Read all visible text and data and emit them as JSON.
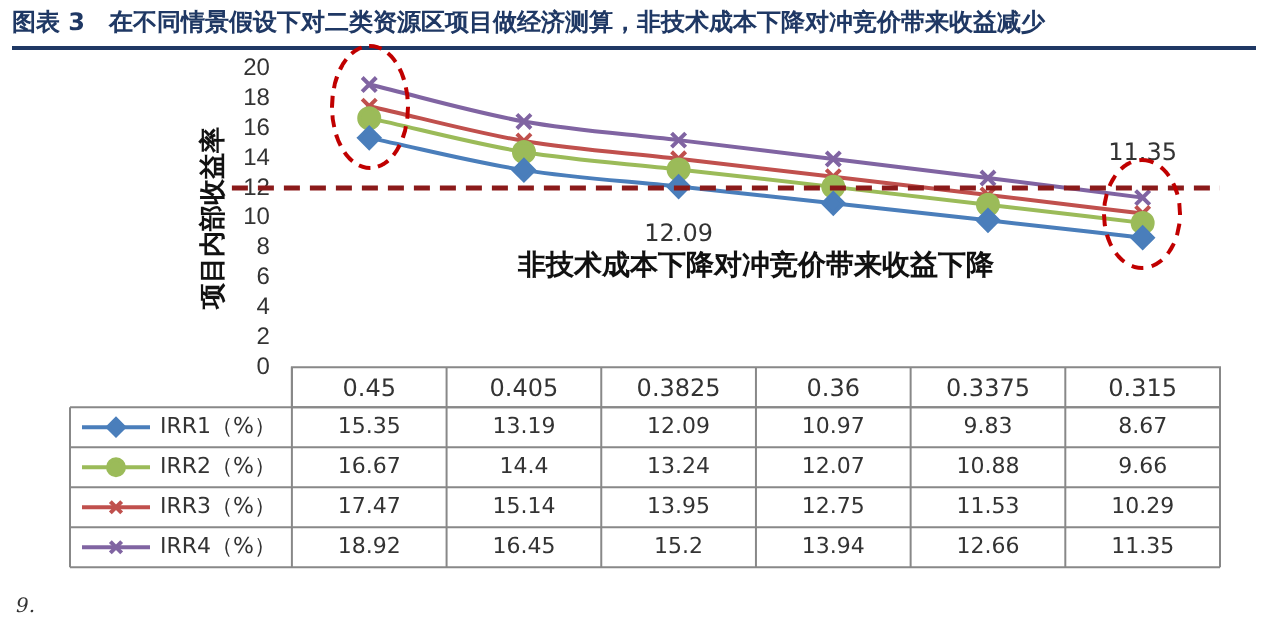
{
  "chart_data": {
    "type": "line",
    "title": "图表 3　在不同情景假设下对二类资源区项目做经济测算，非技术成本下降对冲竞价带来收益减少",
    "ylabel": "项目内部收益率",
    "categories": [
      "0.45",
      "0.405",
      "0.3825",
      "0.36",
      "0.3375",
      "0.315"
    ],
    "series": [
      {
        "name": "IRR1（%）",
        "color": "#4a7ebb",
        "marker": "diamond",
        "values": [
          15.35,
          13.19,
          12.09,
          10.97,
          9.83,
          8.67
        ]
      },
      {
        "name": "IRR2（%）",
        "color": "#9bbb59",
        "marker": "circle",
        "values": [
          16.67,
          14.4,
          13.24,
          12.07,
          10.88,
          9.66
        ]
      },
      {
        "name": "IRR3（%）",
        "color": "#c0504d",
        "marker": "cross",
        "values": [
          17.47,
          15.14,
          13.95,
          12.75,
          11.53,
          10.29
        ]
      },
      {
        "name": "IRR4（%）",
        "color": "#8064a2",
        "marker": "cross",
        "values": [
          18.92,
          16.45,
          15.2,
          13.94,
          12.66,
          11.35
        ]
      }
    ],
    "ylim": [
      0,
      20
    ],
    "yticks": [
      0,
      2,
      4,
      6,
      8,
      10,
      12,
      14,
      16,
      18,
      20
    ],
    "grid": false,
    "legend": "bottom",
    "data_labels": true,
    "line_style": "solid",
    "ref_lines": [
      {
        "axis": "y",
        "value": 12,
        "color": "#8b1a1a",
        "line_style": "dashed"
      }
    ],
    "annotations": [
      {
        "text": "12.09",
        "x": "0.3825",
        "y": 12.09
      },
      {
        "text": "11.35",
        "x": "0.315",
        "y": 11.35
      },
      "非技术成本下降对冲竞价带来收益下降",
      "9."
    ]
  }
}
